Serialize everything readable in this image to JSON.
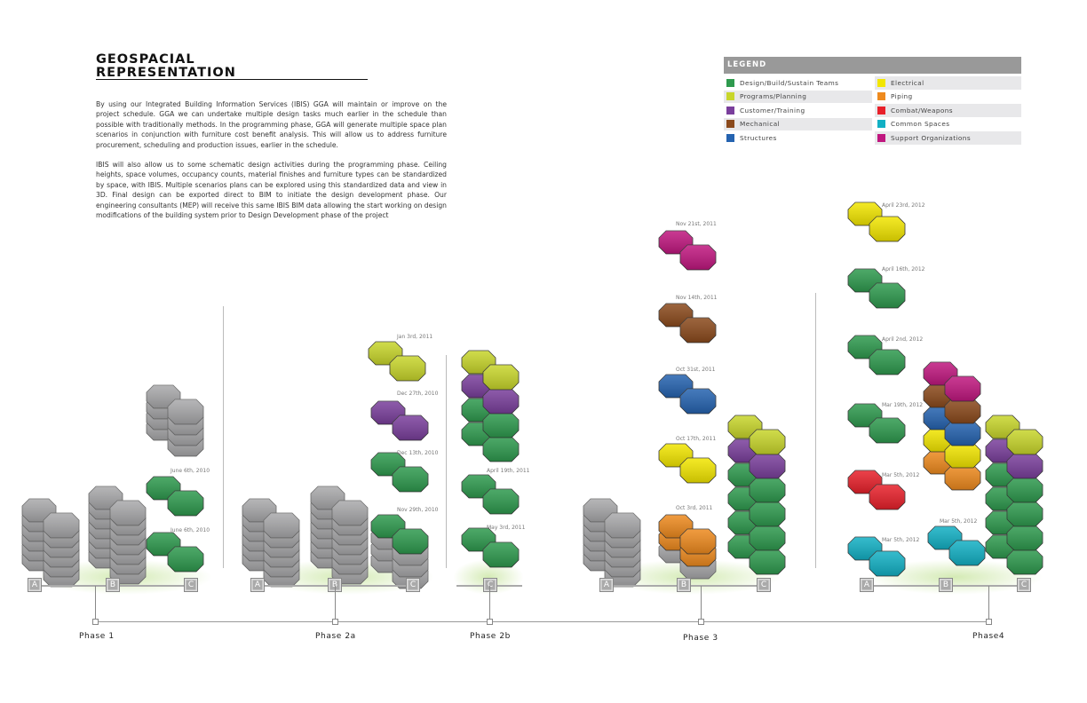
{
  "header": {
    "title_line1": "GEOSPACIAL",
    "title_line2": "REPRESENTATION"
  },
  "paragraphs": [
    "By using our Integrated Building Information Services (IBIS) GGA will maintain or improve on the project schedule. GGA we can undertake multiple design tasks much earlier in the schedule than possible with traditionally methods. In the programming phase, GGA will generate multiple space plan scenarios in conjunction with furniture cost benefit analysis. This will allow us to address furniture procurement, scheduling and production issues, earlier in the schedule.",
    "IBIS will also allow us to some schematic design activities during the programming phase. Ceiling heights, space volumes, occupancy counts, material finishes and furniture types can be standardized by space, with IBIS. Multiple scenarios plans can be explored using this standardized data and view in 3D. Final design can be exported direct to BIM to initiate the design development phase. Our engineering consultants (MEP) will receive this same IBIS BIM data allowing the start working on design modifications of the building system prior to Design Development phase of the project"
  ],
  "legend": {
    "title": "LEGEND",
    "items": [
      {
        "label": "Design/Build/Sustain Teams",
        "color": "#2e9a4e"
      },
      {
        "label": "Electrical",
        "color": "#f2e600"
      },
      {
        "label": "Programs/Planning",
        "color": "#c8d62b"
      },
      {
        "label": "Piping",
        "color": "#ee8a1e"
      },
      {
        "label": "Customer/Training",
        "color": "#7a3f9c"
      },
      {
        "label": "Combat/Weapons",
        "color": "#e8202a"
      },
      {
        "label": "Mechanical",
        "color": "#8b4a1c"
      },
      {
        "label": "Common Spaces",
        "color": "#12b0c4"
      },
      {
        "label": "Structures",
        "color": "#2563b0"
      },
      {
        "label": "Support Organizations",
        "color": "#c0177f"
      }
    ]
  },
  "colors": {
    "green": "#2e9a4e",
    "ygreen": "#c8d62b",
    "purple": "#7a3f9c",
    "brown": "#8b4a1c",
    "blue": "#2563b0",
    "yellow": "#f2e600",
    "orange": "#ee8a1e",
    "red": "#e8202a",
    "cyan": "#12b0c4",
    "magenta": "#c0177f",
    "grey": "#a9a9ab"
  },
  "building_labels": [
    "A",
    "B",
    "C"
  ],
  "phases": [
    "Phase 1",
    "Phase 2a",
    "Phase 2b",
    "Phase 3",
    "Phase4"
  ],
  "dates": [
    "June 6th, 2010",
    "June 6th, 2010",
    "Nov 29th, 2010",
    "Dec 13th, 2010",
    "Dec 27th, 2010",
    "Jan 3rd, 2011",
    "April 19th, 2011",
    "May 3rd, 2011",
    "Oct 3rd, 2011",
    "Oct 17th, 2011",
    "Oct 31st, 2011",
    "Nov 14th, 2011",
    "Nov 21st, 2011",
    "Mar 5th, 2012",
    "Mar 5th, 2012",
    "Mar 19th, 2012",
    "April 2nd, 2012",
    "April 16th, 2012",
    "April 23rd, 2012",
    "Mar 5th, 2012"
  ],
  "stacks": [
    [
      "grey",
      "grey",
      "grey",
      "grey",
      "grey",
      "grey"
    ],
    [
      "grey",
      "grey",
      "grey",
      "grey",
      "grey",
      "grey",
      "grey"
    ],
    [
      "grey",
      "grey",
      "grey",
      "grey"
    ],
    [
      "green"
    ],
    [
      "green"
    ],
    [
      "grey",
      "grey",
      "grey",
      "grey",
      "grey",
      "grey"
    ],
    [
      "grey",
      "grey",
      "grey",
      "grey",
      "grey",
      "grey",
      "grey"
    ],
    [
      "green",
      "grey",
      "grey",
      "grey"
    ],
    [
      "green"
    ],
    [
      "purple"
    ],
    [
      "ygreen"
    ],
    [
      "ygreen",
      "purple",
      "green",
      "green"
    ],
    [
      "green"
    ],
    [
      "green"
    ],
    [
      "grey",
      "grey",
      "grey",
      "grey",
      "grey",
      "grey"
    ],
    [
      "orange",
      "orange",
      "grey"
    ],
    [
      "yellow"
    ],
    [
      "blue"
    ],
    [
      "brown"
    ],
    [
      "magenta"
    ],
    [
      "ygreen",
      "purple",
      "green",
      "green",
      "green",
      "green"
    ],
    [
      "cyan"
    ],
    [
      "red"
    ],
    [
      "green"
    ],
    [
      "green"
    ],
    [
      "green"
    ],
    [
      "yellow"
    ],
    [
      "cyan"
    ],
    [
      "magenta",
      "brown",
      "blue",
      "yellow",
      "orange"
    ],
    [
      "ygreen",
      "purple",
      "green",
      "green",
      "green",
      "green"
    ]
  ]
}
